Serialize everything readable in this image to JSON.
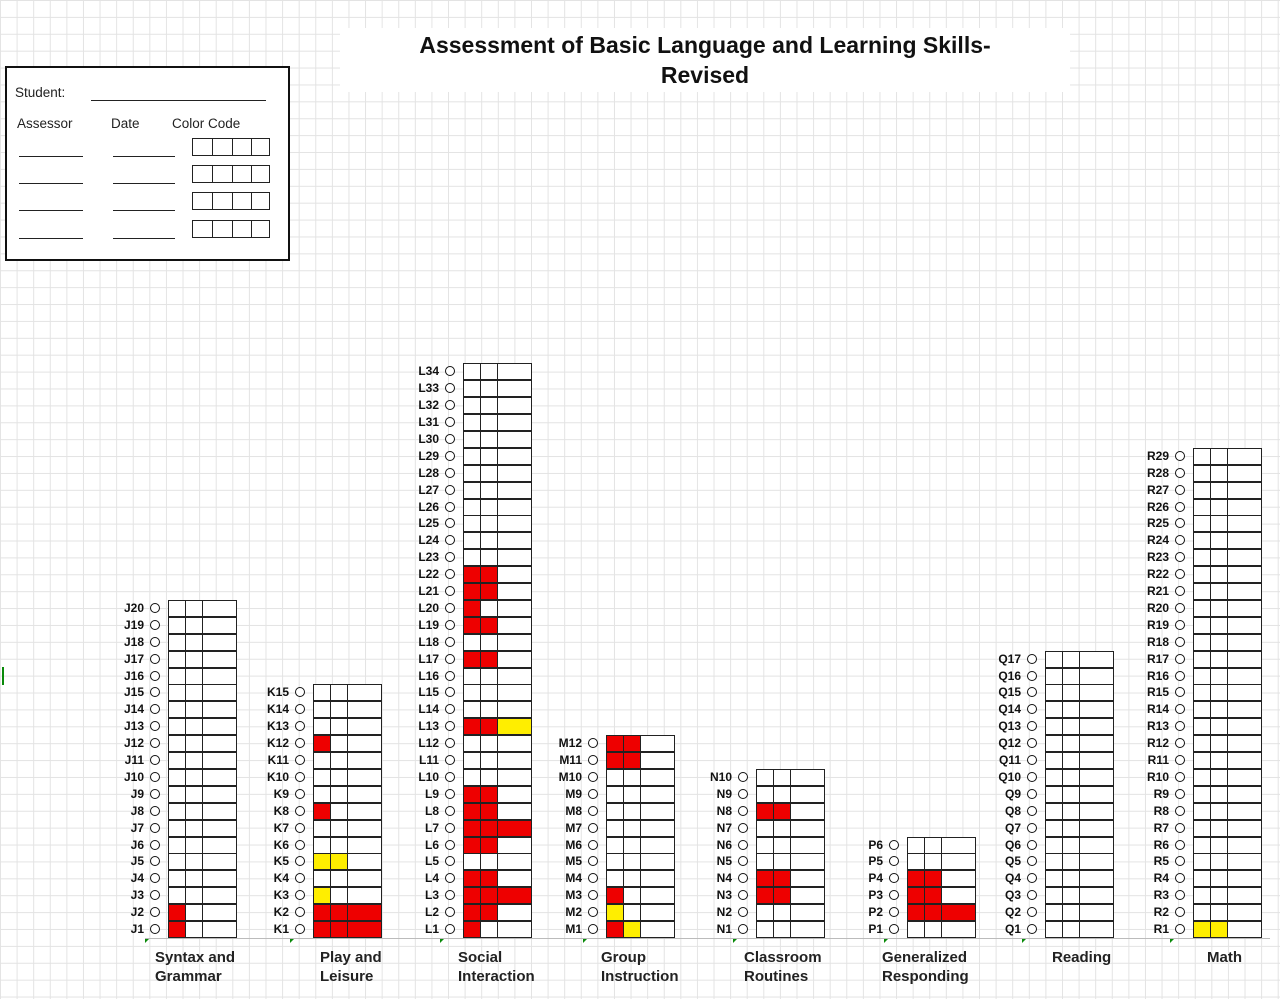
{
  "title": "Assessment of Basic Language and Learning Skills-\nRevised",
  "form": {
    "student_label": "Student:",
    "assessor_label": "Assessor",
    "date_label": "Date",
    "color_code_label": "Color Code"
  },
  "columns": [
    {
      "key": "J",
      "label": "Syntax and\nGrammar",
      "count": 20,
      "states": {
        "1": [
          "red",
          "",
          ""
        ],
        "2": [
          "red",
          "",
          ""
        ]
      }
    },
    {
      "key": "K",
      "label": "Play and\nLeisure",
      "count": 15,
      "states": {
        "1": [
          "red",
          "red",
          "red"
        ],
        "2": [
          "red",
          "red",
          "red"
        ],
        "3": [
          "yellow",
          "",
          ""
        ],
        "5": [
          "yellow",
          "yellow",
          ""
        ],
        "8": [
          "red",
          "",
          ""
        ],
        "12": [
          "red",
          "",
          ""
        ]
      }
    },
    {
      "key": "L",
      "label": "Social\nInteraction",
      "count": 34,
      "states": {
        "1": [
          "red",
          "",
          ""
        ],
        "2": [
          "red",
          "red",
          ""
        ],
        "3": [
          "red",
          "red",
          "red"
        ],
        "4": [
          "red",
          "red",
          ""
        ],
        "6": [
          "red",
          "red",
          ""
        ],
        "7": [
          "red",
          "red",
          "red"
        ],
        "8": [
          "red",
          "red",
          ""
        ],
        "9": [
          "red",
          "red",
          ""
        ],
        "13": [
          "red",
          "red",
          "yellow"
        ],
        "17": [
          "red",
          "red",
          ""
        ],
        "19": [
          "red",
          "red",
          ""
        ],
        "20": [
          "red",
          "",
          ""
        ],
        "21": [
          "red",
          "red",
          ""
        ],
        "22": [
          "red",
          "red",
          ""
        ]
      }
    },
    {
      "key": "M",
      "label": "Group\nInstruction",
      "count": 12,
      "states": {
        "1": [
          "red",
          "yellow",
          ""
        ],
        "2": [
          "yellow",
          "",
          ""
        ],
        "3": [
          "red",
          "",
          ""
        ],
        "11": [
          "red",
          "red",
          ""
        ],
        "12": [
          "red",
          "red",
          ""
        ]
      }
    },
    {
      "key": "N",
      "label": "Classroom\nRoutines",
      "count": 10,
      "states": {
        "3": [
          "red",
          "red",
          ""
        ],
        "4": [
          "red",
          "red",
          ""
        ],
        "8": [
          "red",
          "red",
          ""
        ]
      }
    },
    {
      "key": "P",
      "label": "Generalized\nResponding",
      "count": 6,
      "states": {
        "2": [
          "red",
          "red",
          "red"
        ],
        "3": [
          "red",
          "red",
          ""
        ],
        "4": [
          "red",
          "red",
          ""
        ]
      }
    },
    {
      "key": "Q",
      "label": "Reading",
      "count": 17,
      "states": {}
    },
    {
      "key": "R",
      "label": "Math",
      "count": 29,
      "states": {
        "1": [
          "yellow",
          "yellow",
          ""
        ]
      }
    }
  ]
}
